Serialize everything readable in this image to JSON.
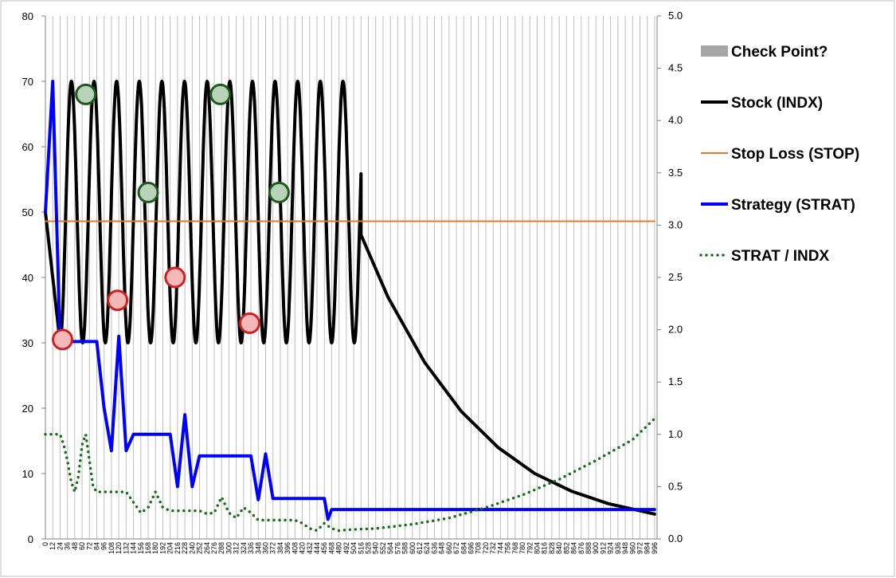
{
  "chart_data": {
    "type": "line",
    "title": "",
    "xlabel": "",
    "ylabel": "",
    "y2label": "",
    "xlim": [
      0,
      1000
    ],
    "ylim": [
      0,
      80
    ],
    "y2lim": [
      0,
      5
    ],
    "x_tick_step": 12,
    "y_ticks": [
      0,
      10,
      20,
      30,
      40,
      50,
      60,
      70,
      80
    ],
    "y2_ticks": [
      "0.0",
      "0.5",
      "1.0",
      "1.5",
      "2.0",
      "2.5",
      "3.0",
      "3.5",
      "4.0",
      "4.5",
      "5.0"
    ],
    "grid": "vertical",
    "legend_position": "right",
    "legend": [
      {
        "label": "Check Point?",
        "kind": "patch",
        "color": "#a6a6a6"
      },
      {
        "label": "Stock (INDX)",
        "kind": "line",
        "color": "#000000"
      },
      {
        "label": "Stop Loss (STOP)",
        "kind": "line",
        "color": "#e07b28"
      },
      {
        "label": "Strategy (STRAT)",
        "kind": "line",
        "color": "#0000ff"
      },
      {
        "label": "STRAT / INDX",
        "kind": "dotted",
        "color": "#1a6e1a"
      }
    ],
    "series": [
      {
        "name": "Stock (INDX)",
        "axis": "left",
        "color": "#000000",
        "oscillation": {
          "x_start": 24,
          "x_end": 516,
          "period": 37,
          "min": 30,
          "max": 70,
          "start_value": 50
        },
        "decay": {
          "x": [
            516,
            560,
            620,
            680,
            740,
            800,
            860,
            920,
            996
          ],
          "y": [
            46.5,
            37,
            27,
            19.5,
            14,
            10,
            7.3,
            5.4,
            3.8
          ]
        }
      },
      {
        "name": "Stop Loss (STOP)",
        "axis": "left",
        "color": "#e07b28",
        "x": [
          0,
          996
        ],
        "y": [
          48.6,
          48.6
        ]
      },
      {
        "name": "Strategy (STRAT)",
        "axis": "left",
        "color": "#0000ff",
        "x": [
          0,
          12,
          18,
          24,
          30,
          72,
          84,
          96,
          108,
          120,
          132,
          144,
          156,
          168,
          204,
          216,
          228,
          240,
          252,
          264,
          276,
          336,
          348,
          360,
          372,
          384,
          396,
          456,
          462,
          468,
          474,
          480,
          996
        ],
        "y": [
          50,
          70,
          50,
          30.2,
          30.2,
          30.2,
          30.2,
          20,
          13.5,
          31,
          13.5,
          16,
          16,
          16,
          16,
          8,
          19,
          8,
          12.7,
          12.7,
          12.7,
          12.7,
          6,
          13,
          6.2,
          6.2,
          6.2,
          6.2,
          3,
          4.5,
          4.5,
          4.5,
          4.5
        ]
      },
      {
        "name": "STRAT / INDX",
        "axis": "right",
        "color": "#1a6e1a",
        "x": [
          0,
          12,
          24,
          30,
          36,
          42,
          48,
          54,
          60,
          66,
          72,
          78,
          84,
          96,
          108,
          120,
          132,
          144,
          156,
          168,
          180,
          192,
          204,
          216,
          228,
          240,
          252,
          264,
          276,
          288,
          300,
          312,
          324,
          336,
          348,
          360,
          372,
          384,
          396,
          408,
          420,
          432,
          444,
          456,
          468,
          480,
          500,
          540,
          600,
          660,
          720,
          780,
          840,
          900,
          960,
          996
        ],
        "y": [
          1.0,
          1.0,
          1.0,
          0.9,
          0.75,
          0.55,
          0.45,
          0.6,
          0.9,
          1.0,
          0.75,
          0.5,
          0.45,
          0.45,
          0.45,
          0.45,
          0.45,
          0.35,
          0.25,
          0.3,
          0.45,
          0.3,
          0.27,
          0.27,
          0.27,
          0.27,
          0.27,
          0.24,
          0.25,
          0.4,
          0.25,
          0.2,
          0.3,
          0.25,
          0.18,
          0.18,
          0.18,
          0.18,
          0.18,
          0.18,
          0.15,
          0.1,
          0.08,
          0.15,
          0.1,
          0.08,
          0.09,
          0.1,
          0.14,
          0.2,
          0.3,
          0.42,
          0.57,
          0.75,
          0.95,
          1.15
        ]
      }
    ],
    "check_points": [
      {
        "x": 28,
        "y": 30.5,
        "status": "red"
      },
      {
        "x": 118,
        "y": 36.5,
        "status": "red"
      },
      {
        "x": 212,
        "y": 40,
        "status": "red"
      },
      {
        "x": 334,
        "y": 33,
        "status": "red"
      },
      {
        "x": 66,
        "y": 68,
        "status": "green"
      },
      {
        "x": 168,
        "y": 53,
        "status": "green"
      },
      {
        "x": 286,
        "y": 68,
        "status": "green"
      },
      {
        "x": 382,
        "y": 53,
        "status": "green"
      }
    ],
    "marker_colors": {
      "red_fill": "#f4b8b8",
      "red_stroke": "#cc2222",
      "green_fill": "#b8d3b8",
      "green_stroke": "#1e5a1e"
    }
  }
}
